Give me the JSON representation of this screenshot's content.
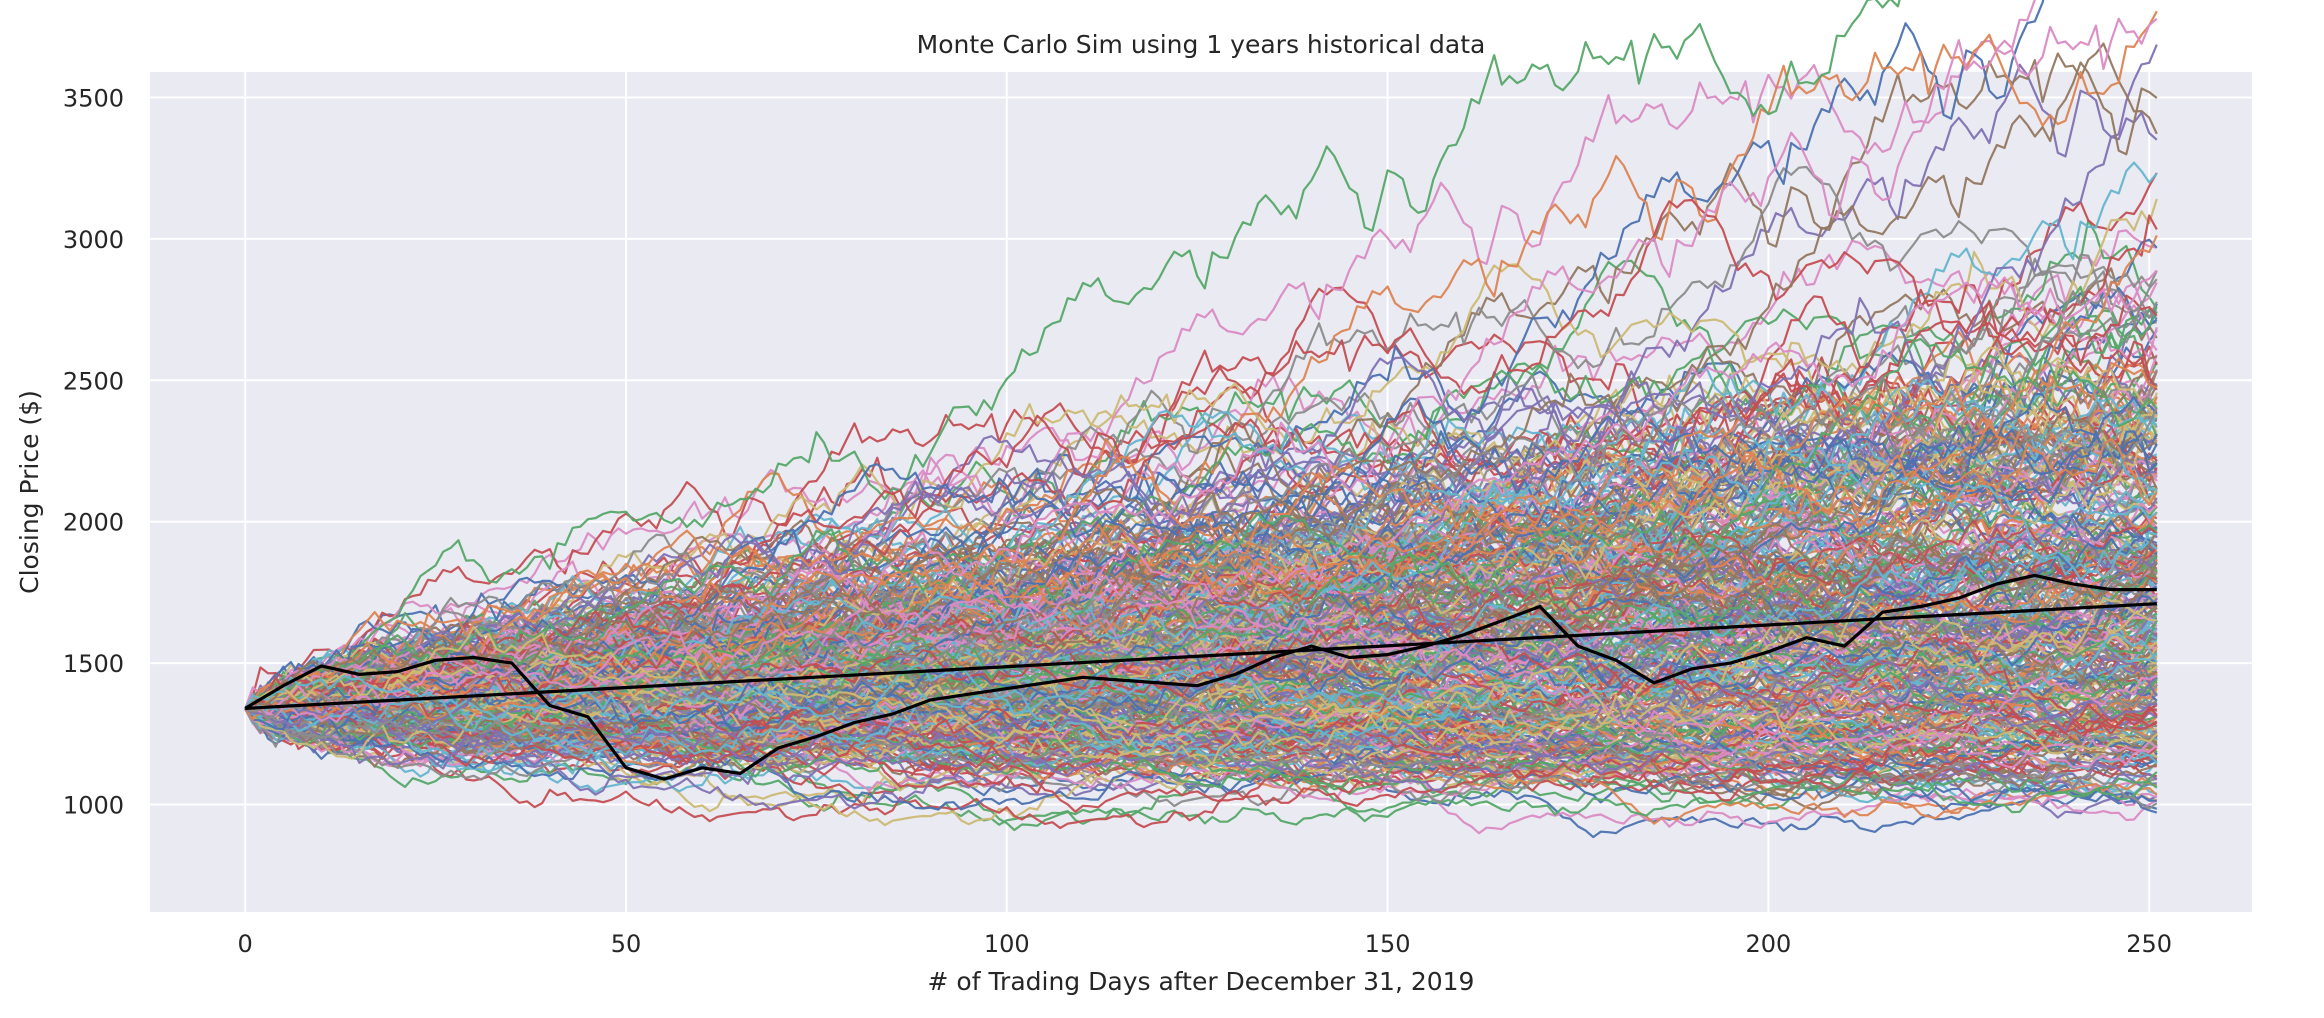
{
  "chart_data": {
    "type": "line",
    "title": "Monte Carlo Sim using 1 years historical data",
    "xlabel": "# of Trading Days after December 31, 2019",
    "ylabel": "Closing Price ($)",
    "xlim": [
      -12.5,
      263.5
    ],
    "ylim": [
      620,
      3590
    ],
    "x_ticks": [
      0,
      50,
      100,
      150,
      200,
      250
    ],
    "y_ticks": [
      1000,
      1500,
      2000,
      2500,
      3000,
      3500
    ],
    "x_tick_labels": [
      "0",
      "50",
      "100",
      "150",
      "200",
      "250"
    ],
    "y_tick_labels": [
      "1000",
      "1500",
      "2000",
      "2500",
      "3000",
      "3500"
    ],
    "grid": true,
    "legend": "none",
    "background": "#eaeaf2",
    "grid_color": "#ffffff",
    "palette": [
      "#4c72b0",
      "#dd8452",
      "#55a868",
      "#c44e52",
      "#8172b3",
      "#937860",
      "#da8bc3",
      "#8c8c8c",
      "#ccb974",
      "#64b5cd"
    ],
    "simulation": {
      "num_paths": 1000,
      "num_days": 251,
      "start_price": 1338,
      "end_price_range_approx": [
        730,
        3470
      ],
      "notable_path_peaks": [
        {
          "color": "#64b5cd",
          "x": 157,
          "y": 3000
        },
        {
          "color": "#dd8452",
          "x": 251,
          "y": 3470
        }
      ]
    },
    "series": [
      {
        "color": "#000000",
        "x": [
          0,
          5,
          10,
          15,
          20,
          25,
          30,
          35,
          40,
          45,
          50,
          55,
          60,
          65,
          70,
          75,
          80,
          85,
          90,
          95,
          100,
          105,
          110,
          115,
          120,
          125,
          130,
          135,
          140,
          145,
          150,
          155,
          160,
          165,
          170,
          175,
          180,
          185,
          190,
          195,
          200,
          205,
          210,
          215,
          220,
          225,
          230,
          235,
          240,
          245,
          251
        ],
        "values": [
          1340,
          1420,
          1490,
          1460,
          1470,
          1510,
          1520,
          1500,
          1350,
          1310,
          1130,
          1090,
          1130,
          1110,
          1200,
          1240,
          1290,
          1320,
          1370,
          1390,
          1410,
          1430,
          1450,
          1440,
          1430,
          1420,
          1460,
          1520,
          1560,
          1520,
          1530,
          1560,
          1600,
          1650,
          1700,
          1560,
          1510,
          1430,
          1480,
          1500,
          1540,
          1590,
          1560,
          1680,
          1700,
          1730,
          1780,
          1810,
          1780,
          1760,
          1760
        ]
      },
      {
        "color": "#000000",
        "x": [
          0,
          251
        ],
        "values": [
          1340,
          1710
        ]
      }
    ]
  }
}
